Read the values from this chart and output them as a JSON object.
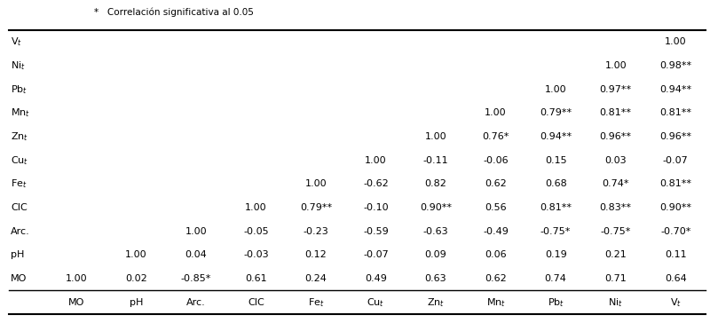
{
  "col_headers": [
    "",
    "MO",
    "pH",
    "Arc.",
    "CIC",
    "Fe$_t$",
    "Cu$_t$",
    "Zn$_t$",
    "Mn$_t$",
    "Pb$_t$",
    "Ni$_t$",
    "V$_t$"
  ],
  "row_headers": [
    "MO",
    "pH",
    "Arc.",
    "CIC",
    "Fe$_t$",
    "Cu$_t$",
    "Zn$_t$",
    "Mn$_t$",
    "Pb$_t$",
    "Ni$_t$",
    "V$_t$"
  ],
  "cell_data": [
    [
      "1.00",
      "0.02",
      "-0.85*",
      "0.61",
      "0.24",
      "0.49",
      "0.63",
      "0.62",
      "0.74",
      "0.71",
      "0.64"
    ],
    [
      "",
      "1.00",
      "0.04",
      "-0.03",
      "0.12",
      "-0.07",
      "0.09",
      "0.06",
      "0.19",
      "0.21",
      "0.11"
    ],
    [
      "",
      "",
      "1.00",
      "-0.05",
      "-0.23",
      "-0.59",
      "-0.63",
      "-0.49",
      "-0.75*",
      "-0.75*",
      "-0.70*"
    ],
    [
      "",
      "",
      "",
      "1.00",
      "0.79**",
      "-0.10",
      "0.90**",
      "0.56",
      "0.81**",
      "0.83**",
      "0.90**"
    ],
    [
      "",
      "",
      "",
      "",
      "1.00",
      "-0.62",
      "0.82",
      "0.62",
      "0.68",
      "0.74*",
      "0.81**"
    ],
    [
      "",
      "",
      "",
      "",
      "",
      "1.00",
      "-0.11",
      "-0.06",
      "0.15",
      "0.03",
      "-0.07"
    ],
    [
      "",
      "",
      "",
      "",
      "",
      "",
      "1.00",
      "0.76*",
      "0.94**",
      "0.96**",
      "0.96**"
    ],
    [
      "",
      "",
      "",
      "",
      "",
      "",
      "",
      "1.00",
      "0.79**",
      "0.81**",
      "0.81**"
    ],
    [
      "",
      "",
      "",
      "",
      "",
      "",
      "",
      "",
      "1.00",
      "0.97**",
      "0.94**"
    ],
    [
      "",
      "",
      "",
      "",
      "",
      "",
      "",
      "",
      "",
      "1.00",
      "0.98**"
    ],
    [
      "",
      "",
      "",
      "",
      "",
      "",
      "",
      "",
      "",
      "",
      "1.00"
    ]
  ],
  "footnote": "*   Correlación significativa al 0.05",
  "bg_color": "#ffffff",
  "text_color": "#000000",
  "line_color": "#000000",
  "font_size": 8.0,
  "header_font_size": 8.0,
  "col_header_display": [
    "MO",
    "pH",
    "Arc.",
    "CIC",
    "Fe$_t$",
    "Cu$_t$",
    "Zn$_t$",
    "Mn$_t$",
    "Pb$_t$",
    "Ni$_t$",
    "V$_t$"
  ]
}
